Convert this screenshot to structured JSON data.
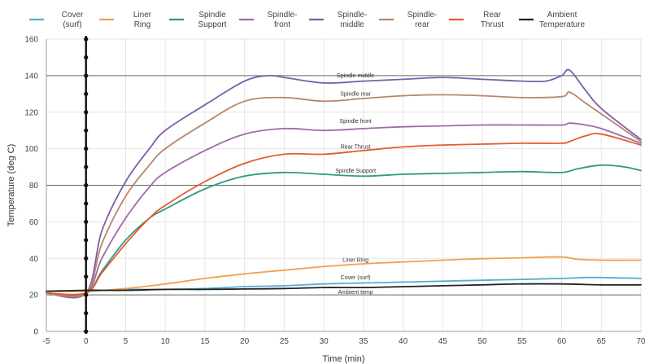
{
  "chart_data": {
    "type": "line",
    "title": "",
    "xlabel": "Time (min)",
    "ylabel": "Temperature (deg C)",
    "xlim": [
      -5,
      70
    ],
    "ylim": [
      0,
      160
    ],
    "x_ticks": [
      -5,
      0,
      5,
      10,
      15,
      20,
      25,
      30,
      35,
      40,
      45,
      50,
      55,
      60,
      65,
      70
    ],
    "y_ticks": [
      0,
      20,
      40,
      60,
      80,
      100,
      120,
      140,
      160
    ],
    "reference_lines_y": [
      20,
      80,
      140
    ],
    "grid": true,
    "legend_position": "top",
    "series": [
      {
        "name": "Cover (surf)",
        "color": "#5aa9d6",
        "annotation": "Cover (surf)",
        "x": [
          -5,
          0,
          5,
          10,
          15,
          20,
          25,
          30,
          35,
          40,
          45,
          50,
          55,
          60,
          63,
          65,
          70
        ],
        "y": [
          22,
          22,
          23,
          23,
          23.5,
          24.5,
          25,
          26,
          26.5,
          27,
          27.5,
          28,
          28.5,
          29,
          29.5,
          29.5,
          29
        ]
      },
      {
        "name": "Liner Ring",
        "color": "#f0a050",
        "annotation": "Liner Ring",
        "x": [
          -5,
          0,
          5,
          10,
          15,
          20,
          25,
          30,
          35,
          40,
          45,
          50,
          55,
          60,
          62,
          65,
          70
        ],
        "y": [
          22,
          22,
          23.5,
          26,
          29,
          31.5,
          33.5,
          35.5,
          37,
          38,
          39,
          39.8,
          40.3,
          40.8,
          39.5,
          39,
          39
        ]
      },
      {
        "name": "Spindle Support",
        "color": "#2e9a80",
        "annotation": "Spindle Support",
        "x": [
          -5,
          0,
          2,
          5,
          8,
          10,
          15,
          20,
          25,
          30,
          35,
          40,
          45,
          50,
          55,
          60,
          62,
          65,
          68,
          70
        ],
        "y": [
          21,
          21,
          33,
          50,
          62,
          67,
          78,
          85,
          87,
          86,
          85,
          86,
          86.5,
          87,
          87.5,
          87,
          89,
          91,
          90,
          88
        ]
      },
      {
        "name": "Spindle-front",
        "color": "#a06aa8",
        "annotation": "Spindle front",
        "x": [
          -5,
          0,
          2,
          5,
          8,
          10,
          15,
          20,
          25,
          30,
          35,
          40,
          45,
          50,
          55,
          60,
          61,
          63,
          65,
          70
        ],
        "y": [
          21,
          21,
          40,
          62,
          79,
          87,
          99,
          108,
          111,
          110,
          111,
          112,
          112.5,
          113,
          113,
          113,
          114,
          113,
          111,
          103
        ]
      },
      {
        "name": "Spindle-middle",
        "color": "#7b5ea8",
        "annotation": "Spindle middle",
        "x": [
          -5,
          0,
          2,
          5,
          8,
          10,
          15,
          20,
          23,
          25,
          30,
          35,
          40,
          45,
          50,
          55,
          58,
          60,
          61,
          63,
          65,
          70
        ],
        "y": [
          21,
          21,
          55,
          82,
          100,
          110,
          124,
          137,
          140,
          139,
          136,
          137,
          138,
          139,
          138,
          137,
          137,
          140,
          143,
          132,
          122,
          105
        ]
      },
      {
        "name": "Spindle-rear",
        "color": "#b8866e",
        "annotation": "Spindle rear",
        "x": [
          -5,
          0,
          2,
          5,
          8,
          10,
          15,
          20,
          25,
          30,
          35,
          40,
          45,
          50,
          55,
          60,
          61,
          63,
          65,
          70
        ],
        "y": [
          21,
          21,
          48,
          74,
          91,
          100,
          114,
          126,
          128,
          126,
          127.5,
          129,
          129.5,
          129,
          128,
          128.5,
          131,
          125,
          119,
          104
        ]
      },
      {
        "name": "Rear Thrust",
        "color": "#e65a2e",
        "annotation": "Rear Thrust",
        "x": [
          -5,
          0,
          2,
          5,
          8,
          10,
          15,
          20,
          25,
          30,
          35,
          40,
          45,
          50,
          55,
          60,
          61,
          63,
          65,
          70
        ],
        "y": [
          21,
          21,
          32,
          48,
          62,
          69,
          82,
          92,
          97,
          97,
          99,
          101,
          102,
          102.5,
          103,
          103,
          104,
          107,
          108,
          102
        ]
      },
      {
        "name": "Ambient Temperature",
        "color": "#222222",
        "annotation": "Ambient temp",
        "x": [
          -5,
          0,
          5,
          10,
          15,
          20,
          25,
          30,
          35,
          40,
          45,
          50,
          55,
          60,
          65,
          70
        ],
        "y": [
          22,
          22.5,
          22.5,
          23,
          23,
          23.2,
          23.5,
          24,
          24,
          24.5,
          25,
          25.5,
          26,
          26,
          25.5,
          25.5
        ]
      }
    ],
    "legend_lines": [
      {
        "series": "Cover (surf)",
        "lines": [
          "Cover",
          "(surf)"
        ]
      },
      {
        "series": "Liner Ring",
        "lines": [
          "Liner",
          "Ring"
        ]
      },
      {
        "series": "Spindle Support",
        "lines": [
          "Spindle",
          "Support"
        ]
      },
      {
        "series": "Spindle-front",
        "lines": [
          "Spindle-",
          "front"
        ]
      },
      {
        "series": "Spindle-middle",
        "lines": [
          "Spindle-",
          "middle"
        ]
      },
      {
        "series": "Spindle-rear",
        "lines": [
          "Spindle-",
          "rear"
        ]
      },
      {
        "series": "Rear Thrust",
        "lines": [
          "Rear",
          "Thrust"
        ]
      },
      {
        "series": "Ambient Temperature",
        "lines": [
          "Ambient",
          "Temperature"
        ]
      }
    ],
    "series_label_positions": [
      {
        "series": "Spindle-middle",
        "x": 34,
        "y": 139
      },
      {
        "series": "Spindle-rear",
        "x": 34,
        "y": 129
      },
      {
        "series": "Spindle-front",
        "x": 34,
        "y": 114
      },
      {
        "series": "Rear Thrust",
        "x": 34,
        "y": 100
      },
      {
        "series": "Spindle Support",
        "x": 34,
        "y": 87
      },
      {
        "series": "Liner Ring",
        "x": 34,
        "y": 38
      },
      {
        "series": "Cover (surf)",
        "x": 34,
        "y": 28.5
      },
      {
        "series": "Ambient Temperature",
        "x": 34,
        "y": 20.5
      }
    ],
    "marker_line_x": 0
  }
}
